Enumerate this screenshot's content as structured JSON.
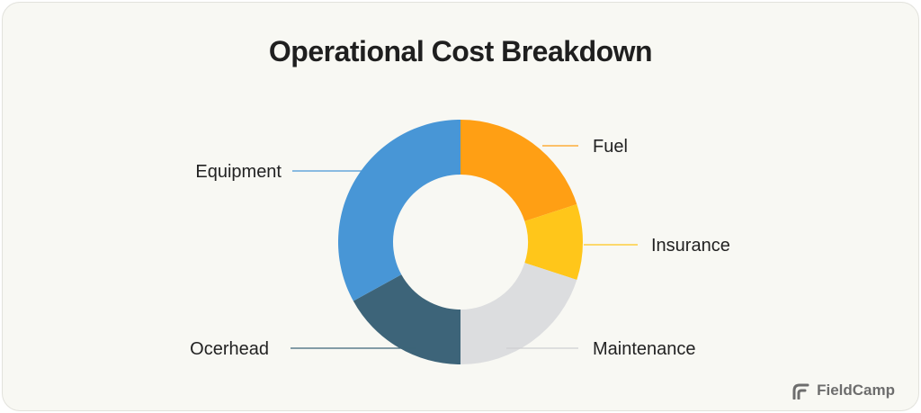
{
  "chart_data": {
    "type": "pie",
    "title": "Operational Cost Breakdown",
    "donut": true,
    "slices": [
      {
        "label": "Fuel",
        "value": 20,
        "color": "#FF9F14"
      },
      {
        "label": "Insurance",
        "value": 10,
        "color": "#FFC61A"
      },
      {
        "label": "Maintenance",
        "value": 20,
        "color": "#DCDDDF"
      },
      {
        "label": "Ocerhead",
        "value": 17,
        "color": "#3D6479"
      },
      {
        "label": "Equipment",
        "value": 33,
        "color": "#4896D6"
      }
    ]
  },
  "brand": {
    "name": "FieldCamp",
    "icon": "fieldcamp-logo-icon"
  }
}
